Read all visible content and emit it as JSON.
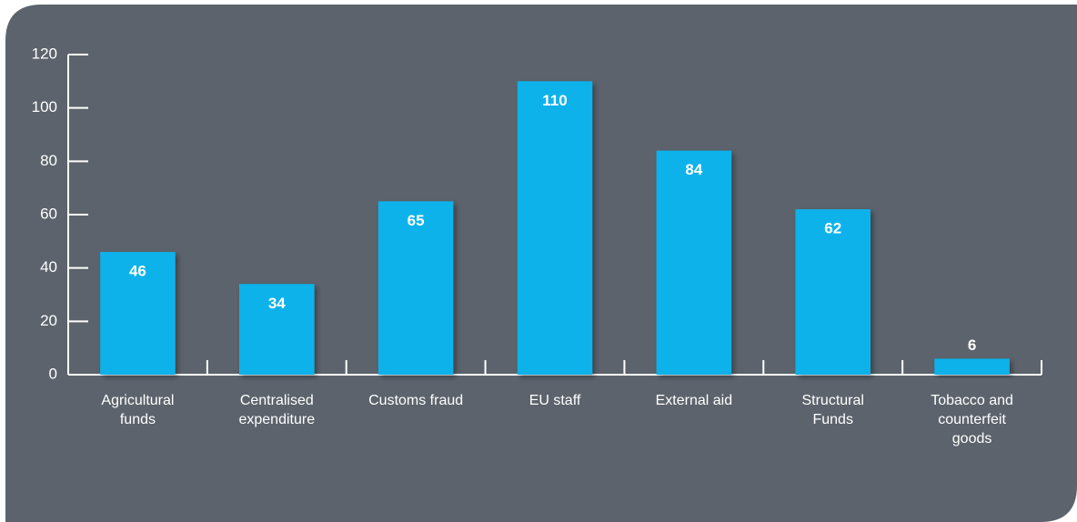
{
  "chart_data": {
    "type": "bar",
    "categories": [
      "Agricultural funds",
      "Centralised expenditure",
      "Customs fraud",
      "EU staff",
      "External aid",
      "Structural Funds",
      "Tobacco and counterfeit goods"
    ],
    "values": [
      46,
      34,
      65,
      110,
      84,
      62,
      6
    ],
    "color": "#0bb2ea",
    "ylim": [
      0,
      120
    ],
    "yticks": [
      0,
      20,
      40,
      60,
      80,
      100,
      120
    ],
    "grid": false
  }
}
